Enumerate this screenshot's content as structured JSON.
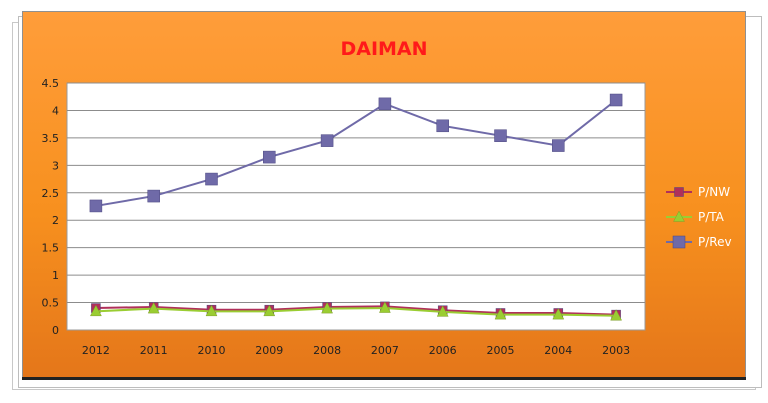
{
  "chart_data": {
    "type": "line",
    "title": "DAIMAN",
    "categories": [
      "2012",
      "2011",
      "2010",
      "2009",
      "2008",
      "2007",
      "2006",
      "2005",
      "2004",
      "2003"
    ],
    "ylim": [
      0,
      4.5
    ],
    "yticks": [
      "0",
      "0.5",
      "1",
      "1.5",
      "2",
      "2.5",
      "3",
      "3.5",
      "4",
      "4.5"
    ],
    "grid": true,
    "legend_position": "right",
    "series": [
      {
        "name": "P/NW",
        "color": "#b0305a",
        "marker": "square",
        "values": [
          0.4,
          0.42,
          0.37,
          0.37,
          0.42,
          0.43,
          0.36,
          0.31,
          0.31,
          0.28
        ]
      },
      {
        "name": "P/TA",
        "color": "#9acd32",
        "marker": "triangle",
        "values": [
          0.34,
          0.39,
          0.34,
          0.34,
          0.39,
          0.4,
          0.33,
          0.28,
          0.28,
          0.26
        ]
      },
      {
        "name": "P/Rev",
        "color": "#6f6aa8",
        "marker": "square",
        "values": [
          2.26,
          2.44,
          2.75,
          3.15,
          3.45,
          4.12,
          3.72,
          3.54,
          3.36,
          4.19
        ]
      }
    ]
  }
}
